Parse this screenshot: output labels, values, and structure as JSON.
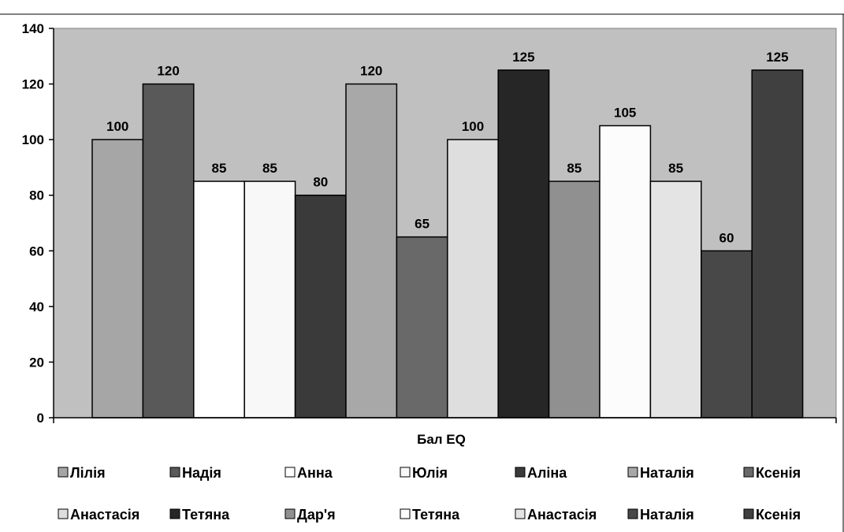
{
  "chart_data": {
    "type": "bar",
    "title": "",
    "xlabel": "Бал EQ",
    "ylabel": "",
    "ylim": [
      0,
      140
    ],
    "ytick_step": 20,
    "grid": false,
    "legend_position": "bottom",
    "plot_background": "#c0c0c0",
    "series": [
      {
        "name": "Лілія",
        "value": 100,
        "color": "#a6a6a6"
      },
      {
        "name": "Надія",
        "value": 120,
        "color": "#595959"
      },
      {
        "name": "Анна",
        "value": 85,
        "color": "#ffffff"
      },
      {
        "name": "Юлія",
        "value": 85,
        "color": "#f8f8f8"
      },
      {
        "name": "Аліна",
        "value": 80,
        "color": "#3a3a3a"
      },
      {
        "name": "Наталія",
        "value": 120,
        "color": "#a8a8a8"
      },
      {
        "name": "Ксенія",
        "value": 65,
        "color": "#696969"
      },
      {
        "name": "Анастасія",
        "value": 100,
        "color": "#dedede"
      },
      {
        "name": "Тетяна",
        "value": 125,
        "color": "#262626"
      },
      {
        "name": "Дар'я",
        "value": 85,
        "color": "#909090"
      },
      {
        "name": "Тетяна",
        "value": 105,
        "color": "#fcfcfc"
      },
      {
        "name": "Анастасія",
        "value": 85,
        "color": "#e4e4e4"
      },
      {
        "name": "Наталія",
        "value": 60,
        "color": "#484848"
      },
      {
        "name": "Ксенія",
        "value": 125,
        "color": "#404040"
      }
    ]
  }
}
